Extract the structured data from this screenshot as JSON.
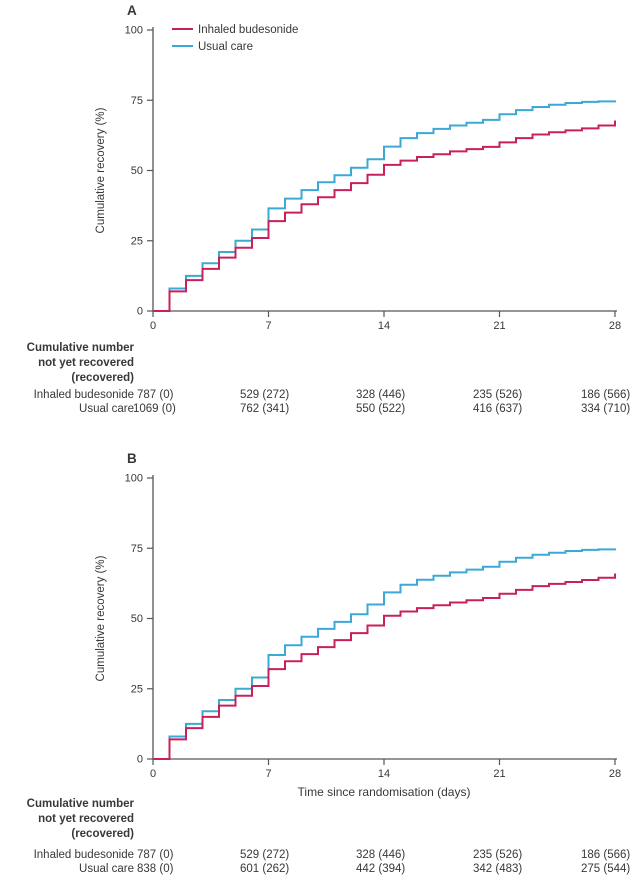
{
  "colors": {
    "budesonide": "#C9205C",
    "usual_care": "#3BA9D6",
    "axis": "#565656",
    "text": "#3b3735"
  },
  "chart_data": [
    {
      "panel": "A",
      "type": "line",
      "subtype": "step",
      "show_legend": true,
      "title": "",
      "xlabel": "",
      "ylabel": "Cumulative recovery (%)",
      "xlim": [
        0,
        28
      ],
      "ylim": [
        0,
        100
      ],
      "xticks": [
        0,
        7,
        14,
        21,
        28
      ],
      "yticks": [
        0,
        25,
        50,
        75,
        100
      ],
      "x": [
        0,
        1,
        2,
        3,
        4,
        5,
        6,
        7,
        8,
        9,
        10,
        11,
        12,
        13,
        14,
        15,
        16,
        17,
        18,
        19,
        20,
        21,
        22,
        23,
        24,
        25,
        26,
        27,
        28
      ],
      "series": [
        {
          "name": "Inhaled budesonide",
          "color": "#C9205C",
          "values": [
            0,
            7,
            11,
            15,
            19,
            22.5,
            26,
            32,
            35,
            38,
            40.5,
            43,
            45.5,
            48.5,
            52,
            53.5,
            54.8,
            55.8,
            56.8,
            57.6,
            58.4,
            60,
            61.5,
            62.8,
            63.6,
            64.3,
            65,
            66,
            67.8
          ]
        },
        {
          "name": "Usual care",
          "color": "#3BA9D6",
          "values": [
            0,
            8,
            12.5,
            17,
            21,
            25,
            29,
            36.5,
            40,
            43,
            45.8,
            48.3,
            51,
            54,
            58.5,
            61.5,
            63.3,
            64.8,
            66,
            67,
            68,
            70,
            71.5,
            72.6,
            73.4,
            74,
            74.4,
            74.6,
            74.9
          ]
        }
      ],
      "risk_table": {
        "header": [
          "Cumulative number",
          "not yet recovered",
          "(recovered)"
        ],
        "timepoints": [
          0,
          7,
          14,
          21,
          28
        ],
        "rows": [
          {
            "label": "Inhaled budesonide",
            "values": [
              "787 (0)",
              "529 (272)",
              "328 (446)",
              "235 (526)",
              "186 (566)"
            ]
          },
          {
            "label": "Usual care",
            "values": [
              "1069 (0)",
              "762 (341)",
              "550 (522)",
              "416 (637)",
              "334 (710)"
            ]
          }
        ]
      }
    },
    {
      "panel": "B",
      "type": "line",
      "subtype": "step",
      "show_legend": false,
      "title": "",
      "xlabel": "Time since randomisation (days)",
      "ylabel": "Cumulative recovery (%)",
      "xlim": [
        0,
        28
      ],
      "ylim": [
        0,
        100
      ],
      "xticks": [
        0,
        7,
        14,
        21,
        28
      ],
      "yticks": [
        0,
        25,
        50,
        75,
        100
      ],
      "x": [
        0,
        1,
        2,
        3,
        4,
        5,
        6,
        7,
        8,
        9,
        10,
        11,
        12,
        13,
        14,
        15,
        16,
        17,
        18,
        19,
        20,
        21,
        22,
        23,
        24,
        25,
        26,
        27,
        28
      ],
      "series": [
        {
          "name": "Inhaled budesonide",
          "color": "#C9205C",
          "values": [
            0,
            7,
            11,
            15,
            19,
            22.5,
            26,
            32,
            34.8,
            37.3,
            39.8,
            42.3,
            44.8,
            47.5,
            51,
            52.5,
            53.7,
            54.7,
            55.7,
            56.5,
            57.3,
            58.8,
            60.2,
            61.5,
            62.3,
            63,
            63.7,
            64.5,
            66
          ]
        },
        {
          "name": "Usual care",
          "color": "#3BA9D6",
          "values": [
            0,
            8,
            12.5,
            17,
            21,
            25,
            29,
            37,
            40.5,
            43.5,
            46.3,
            48.8,
            51.5,
            55,
            59.3,
            62,
            63.8,
            65.2,
            66.4,
            67.4,
            68.4,
            70.2,
            71.6,
            72.7,
            73.4,
            74,
            74.4,
            74.6,
            74.9
          ]
        }
      ],
      "risk_table": {
        "header": [
          "Cumulative number",
          "not yet recovered",
          "(recovered)"
        ],
        "timepoints": [
          0,
          7,
          14,
          21,
          28
        ],
        "rows": [
          {
            "label": "Inhaled budesonide",
            "values": [
              "787 (0)",
              "529 (272)",
              "328 (446)",
              "235 (526)",
              "186 (566)"
            ]
          },
          {
            "label": "Usual care",
            "values": [
              "838 (0)",
              "601 (262)",
              "442 (394)",
              "342 (483)",
              "275 (544)"
            ]
          }
        ]
      }
    }
  ]
}
